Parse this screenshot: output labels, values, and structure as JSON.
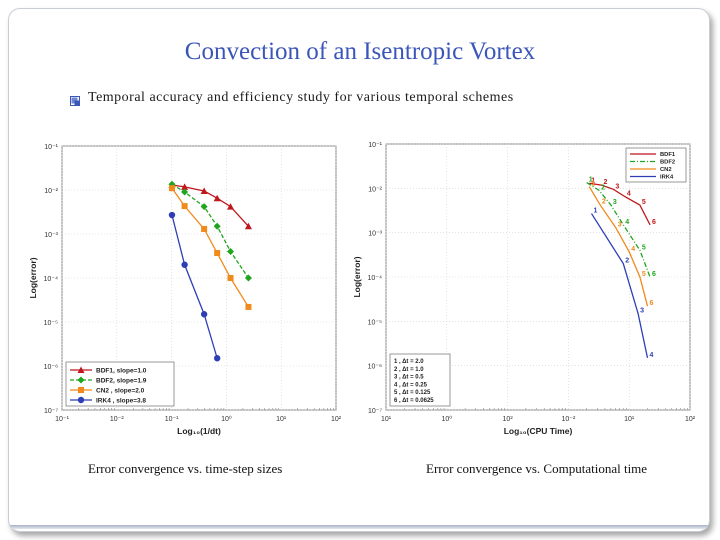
{
  "slide": {
    "title": "Convection of an Isentropic Vortex",
    "bullet": "Temporal accuracy and efficiency study for various temporal schemes",
    "caption_left": "Error convergence vs. time-step sizes",
    "caption_right": "Error convergence vs. Computational time"
  },
  "chart_data": [
    {
      "type": "line",
      "xscale": "log",
      "yscale": "log",
      "xlim": [
        0.1,
        100
      ],
      "ylim": [
        1e-07,
        0.1
      ],
      "xticks": [
        "10⁻¹",
        "10⁻²",
        "10⁻¹",
        "10⁰",
        "10¹",
        "10²"
      ],
      "xlabel": "Log₁₀(1/dt)",
      "ylabel": "Log(error)",
      "yticks": [
        "10⁻¹",
        "10⁻²",
        "10⁻³",
        "10⁻⁴",
        "10⁻⁵",
        "10⁻⁶",
        "10⁻⁷"
      ],
      "legend_position": "bottom-left",
      "series": [
        {
          "name": "BDF1, slope=1.0",
          "color": "#c0161c",
          "marker": "triangle",
          "dash": "",
          "x": [
            1.6,
            2.2,
            3.6,
            5.0,
            7.0,
            11.0
          ],
          "y": [
            0.013,
            0.0118,
            0.0095,
            0.0065,
            0.0042,
            0.0015
          ]
        },
        {
          "name": "BDF2, slope=1.9",
          "color": "#1fa61f",
          "marker": "diamond",
          "dash": "4,2",
          "x": [
            1.6,
            2.2,
            3.6,
            5.0,
            7.0,
            11.0
          ],
          "y": [
            0.0135,
            0.009,
            0.0042,
            0.0015,
            0.0004,
            0.0001
          ]
        },
        {
          "name": "CN2 , slope=2.0",
          "color": "#f08a1c",
          "marker": "square",
          "dash": "",
          "x": [
            1.6,
            2.2,
            3.6,
            5.0,
            7.0,
            11.0
          ],
          "y": [
            0.011,
            0.0043,
            0.0013,
            0.00037,
            0.0001,
            2.2e-05
          ]
        },
        {
          "name": "IRK4 , slope=3.8",
          "color": "#2e3fb5",
          "marker": "circle",
          "dash": "",
          "x": [
            1.6,
            2.2,
            3.6,
            5.0
          ],
          "y": [
            0.0027,
            0.0002,
            1.5e-05,
            1.5e-06
          ]
        }
      ]
    },
    {
      "type": "line",
      "xscale": "log",
      "yscale": "log",
      "xlim": [
        0.001,
        100
      ],
      "ylim": [
        1e-07,
        0.1
      ],
      "xticks": [
        "10¹",
        "10⁰",
        "10²",
        "10⁻²",
        "10¹",
        "10²"
      ],
      "xlabel": "Log₁₀(CPU Time)",
      "ylabel": "Log(error)",
      "yticks": [
        "10⁻¹",
        "10⁻²",
        "10⁻³",
        "10⁻⁴",
        "10⁻⁵",
        "10⁻⁶",
        "10⁻⁷"
      ],
      "legend_position": "top-right",
      "series": [
        {
          "name": "BDF1",
          "color": "#c0161c",
          "marker": "number",
          "dash": "",
          "x": [
            2.2,
            3.5,
            5.5,
            8.5,
            15,
            22
          ],
          "y": [
            0.013,
            0.0118,
            0.0095,
            0.0065,
            0.0042,
            0.0015
          ]
        },
        {
          "name": "BDF2",
          "color": "#1fa61f",
          "marker": "number",
          "dash": "5,2,1,2",
          "x": [
            2.0,
            3.2,
            5.0,
            8.0,
            15,
            22
          ],
          "y": [
            0.0135,
            0.009,
            0.0042,
            0.0015,
            0.0004,
            0.0001
          ]
        },
        {
          "name": "CN2",
          "color": "#f08a1c",
          "marker": "number",
          "dash": "",
          "x": [
            2.2,
            3.3,
            6.0,
            10.0,
            15,
            20
          ],
          "y": [
            0.011,
            0.0043,
            0.0013,
            0.00037,
            0.0001,
            2.2e-05
          ]
        },
        {
          "name": "IRK4",
          "color": "#2e3fb5",
          "marker": "number",
          "dash": "",
          "x": [
            2.4,
            8.0,
            14.0,
            20.0
          ],
          "y": [
            0.0027,
            0.0002,
            1.5e-05,
            1.5e-06
          ]
        }
      ],
      "point_labels": [
        "1",
        "2",
        "3",
        "4",
        "5",
        "6"
      ],
      "step_legend": [
        "1 , Δt = 2.0",
        "2 , Δt = 1.0",
        "3 , Δt = 0.5",
        "4 , Δt = 0.25",
        "5 , Δt = 0.125",
        "6 , Δt = 0.0625"
      ]
    }
  ]
}
